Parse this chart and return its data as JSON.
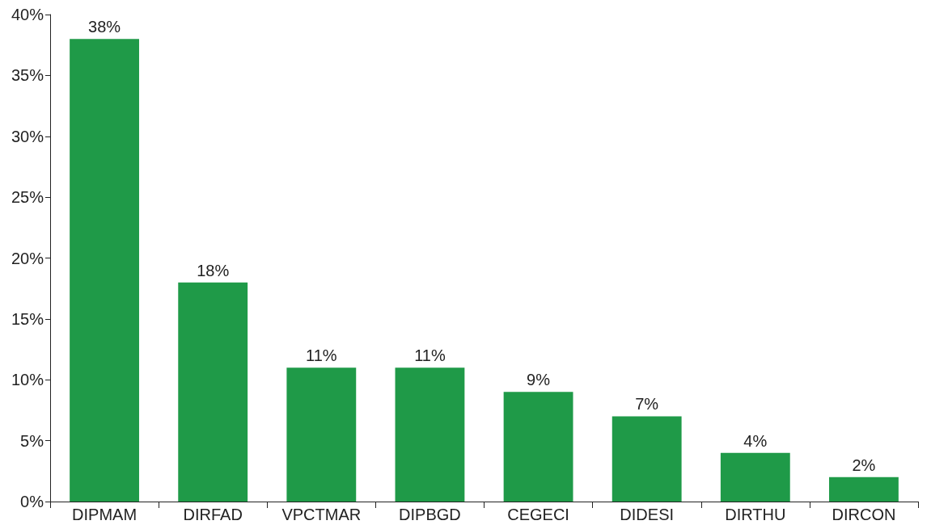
{
  "chart_data": {
    "type": "bar",
    "categories": [
      "DIPMAM",
      "DIRFAD",
      "VPCTMAR",
      "DIPBGD",
      "CEGECI",
      "DIDESI",
      "DIRTHU",
      "DIRCON"
    ],
    "values": [
      38,
      18,
      11,
      11,
      9,
      7,
      4,
      2
    ],
    "value_labels": [
      "38%",
      "18%",
      "11%",
      "11%",
      "9%",
      "7%",
      "4%",
      "2%"
    ],
    "color": "#1f9a48",
    "ylim": [
      0,
      40
    ],
    "yticks": [
      {
        "value": 0,
        "label": "0%"
      },
      {
        "value": 5,
        "label": "5%"
      },
      {
        "value": 10,
        "label": "10%"
      },
      {
        "value": 15,
        "label": "15%"
      },
      {
        "value": 20,
        "label": "20%"
      },
      {
        "value": 25,
        "label": "25%"
      },
      {
        "value": 30,
        "label": "30%"
      },
      {
        "value": 35,
        "label": "35%"
      },
      {
        "value": 40,
        "label": "40%"
      }
    ],
    "grid": false
  }
}
